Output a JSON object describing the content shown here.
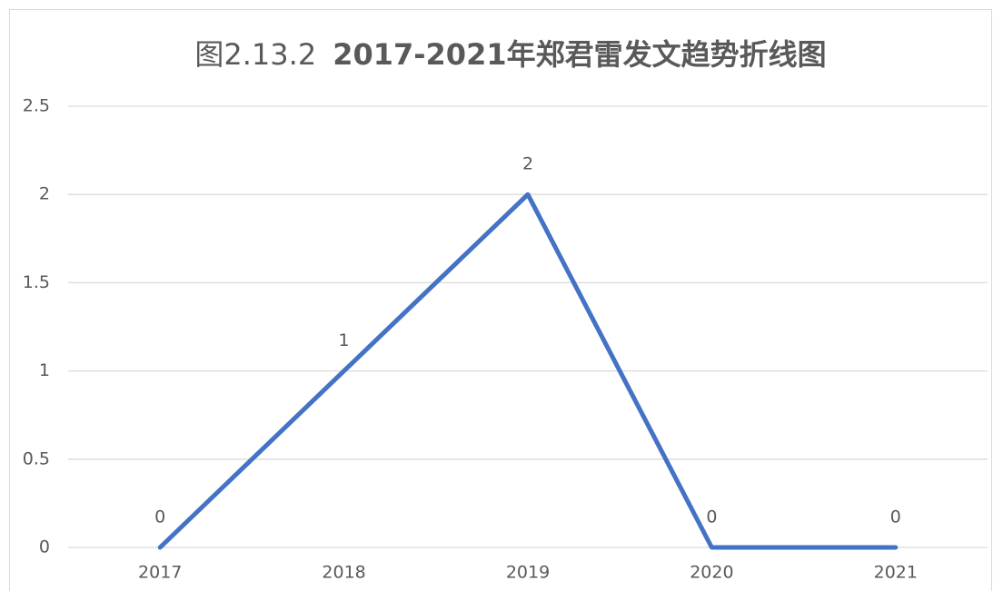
{
  "chart_data": {
    "type": "line",
    "title": [
      "图2.13.2",
      "2017-2021年郑君雷发文趋势折线图"
    ],
    "categories": [
      "2017",
      "2018",
      "2019",
      "2020",
      "2021"
    ],
    "values": [
      0,
      1,
      2,
      0,
      0
    ],
    "color": "#4472c4",
    "ylim": [
      0,
      2.5
    ],
    "yticks": [
      0,
      0.5,
      1,
      1.5,
      2,
      2.5
    ],
    "grid": true
  }
}
